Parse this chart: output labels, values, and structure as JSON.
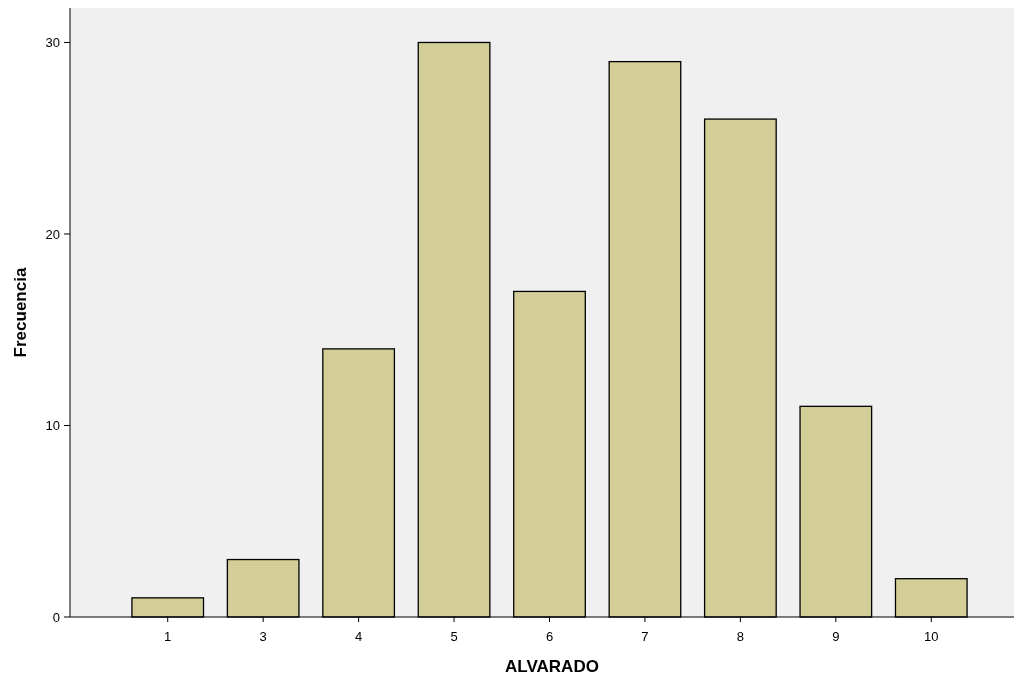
{
  "chart_data": {
    "type": "bar",
    "xlabel": "ALVARADO",
    "ylabel": "Frecuencia",
    "categories": [
      "1",
      "3",
      "4",
      "5",
      "6",
      "7",
      "8",
      "9",
      "10"
    ],
    "values": [
      1,
      3,
      14,
      30,
      17,
      29,
      26,
      11,
      2
    ],
    "color": "#d3ce97",
    "ylim": [
      0,
      31.8
    ],
    "yticks": [
      0,
      10,
      20,
      30
    ],
    "grid": false
  }
}
